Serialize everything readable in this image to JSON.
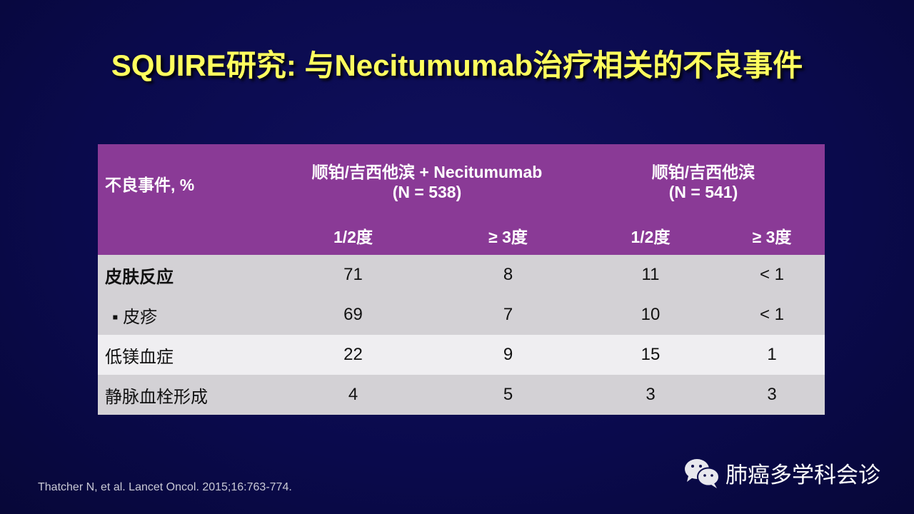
{
  "title": "SQUIRE研究: 与Necitumumab治疗相关的不良事件",
  "table": {
    "corner": "不良事件, %",
    "groups": [
      {
        "name": "顺铂/吉西他滨 + Necitumumab",
        "n": "(N = 538)"
      },
      {
        "name": "顺铂/吉西他滨",
        "n": "(N = 541)"
      }
    ],
    "subheaders": [
      "1/2度",
      "≥ 3度",
      "1/2度",
      "≥ 3度"
    ],
    "rows": [
      {
        "label": "皮肤反应",
        "values": [
          "71",
          "8",
          "11",
          "< 1"
        ]
      },
      {
        "label": "▪ 皮疹",
        "values": [
          "69",
          "7",
          "10",
          "< 1"
        ]
      },
      {
        "label": "低镁血症",
        "values": [
          "22",
          "9",
          "15",
          "1"
        ]
      },
      {
        "label": "静脉血栓形成",
        "values": [
          "4",
          "5",
          "3",
          "3"
        ]
      }
    ]
  },
  "citation": "Thatcher N, et al. Lancet Oncol. 2015;16:763-774.",
  "watermark": {
    "icon": "wechat-icon",
    "text": "肺癌多学科会诊"
  },
  "colors": {
    "header": "#8a3a96",
    "title": "#ffff5e",
    "background": "#0a0a4c"
  }
}
